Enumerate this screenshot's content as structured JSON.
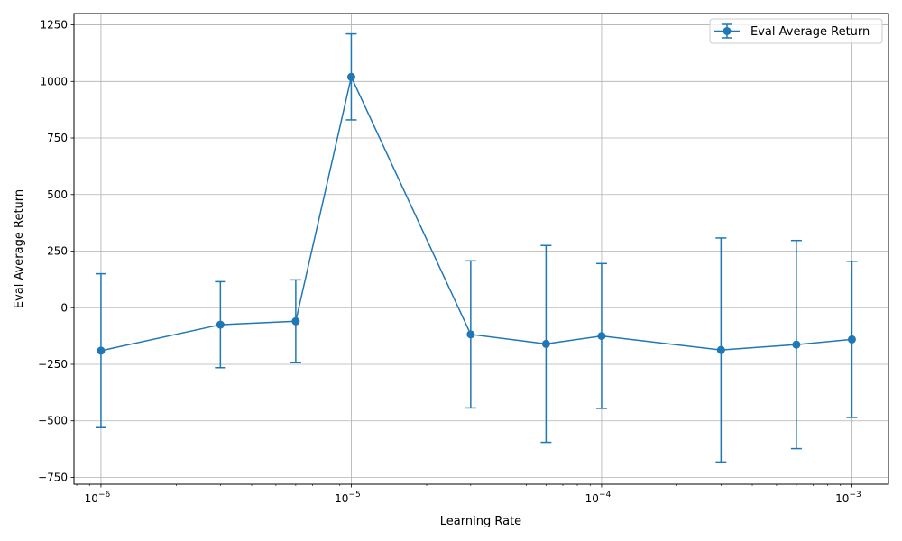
{
  "chart_data": {
    "type": "line",
    "xscale": "log",
    "xlabel": "Learning Rate",
    "ylabel": "Eval Average Return",
    "xlim": [
      7.8e-07,
      0.0014
    ],
    "ylim": [
      -780,
      1300
    ],
    "x_ticks": [
      {
        "value": 1e-06,
        "base": "10",
        "exp": "−6"
      },
      {
        "value": 1e-05,
        "base": "10",
        "exp": "−5"
      },
      {
        "value": 0.0001,
        "base": "10",
        "exp": "−4"
      },
      {
        "value": 0.001,
        "base": "10",
        "exp": "−3"
      }
    ],
    "y_ticks": [
      -750,
      -500,
      -250,
      0,
      250,
      500,
      750,
      1000,
      1250
    ],
    "y_tick_labels": [
      "−750",
      "−500",
      "−250",
      "0",
      "250",
      "500",
      "750",
      "1000",
      "1250"
    ],
    "grid": true,
    "legend_position": "top-right",
    "series": [
      {
        "name": "Eval Average Return",
        "color": "#1f77b4",
        "marker": "circle",
        "x": [
          1e-06,
          3e-06,
          6e-06,
          1e-05,
          3e-05,
          6e-05,
          0.0001,
          0.0003,
          0.0006,
          0.001
        ],
        "y": [
          -190,
          -75,
          -60,
          1020,
          -118,
          -160,
          -125,
          -187,
          -163,
          -140
        ],
        "err": [
          340,
          190,
          183,
          190,
          325,
          435,
          320,
          495,
          460,
          345
        ]
      }
    ]
  }
}
